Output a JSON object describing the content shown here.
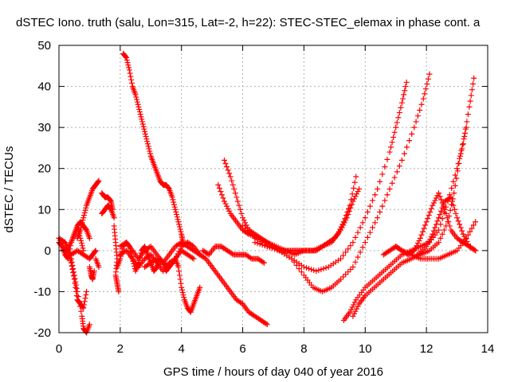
{
  "chart_data": {
    "type": "scatter",
    "title": "dSTEC Iono. truth (salu, Lon=315, Lat=-2, h=22): STEC-STEC_elemax in phase cont. a",
    "xlabel": "GPS time / hours of day 040 of year 2016",
    "ylabel": "dSTEC  / TECUs",
    "xlim": [
      0,
      14
    ],
    "ylim": [
      -20,
      50
    ],
    "xticks": [
      0,
      2,
      4,
      6,
      8,
      10,
      12,
      14
    ],
    "yticks": [
      -20,
      -10,
      0,
      10,
      20,
      30,
      40,
      50
    ],
    "grid": true,
    "legend": "none",
    "marker": "plus",
    "color": "#ff0000",
    "series": [
      {
        "x": [
          0.0,
          0.2,
          0.4,
          0.5,
          0.6,
          0.75,
          0.8,
          0.9,
          1.0
        ],
        "y": [
          3,
          2,
          -2,
          -6,
          -10,
          -16,
          -19,
          -20,
          -18
        ]
      },
      {
        "x": [
          0.2,
          0.3,
          0.4,
          0.5,
          0.6,
          0.7,
          0.8,
          0.9
        ],
        "y": [
          2,
          0,
          -3,
          -7,
          -12,
          -13,
          -14,
          -10
        ]
      },
      {
        "x": [
          0.0,
          0.1,
          0.2,
          0.3,
          0.4,
          0.5,
          0.6,
          0.7,
          0.8
        ],
        "y": [
          2,
          1,
          -1,
          -2,
          2,
          4,
          6,
          3,
          0
        ]
      },
      {
        "x": [
          0.0,
          0.2,
          0.4,
          0.5,
          0.6,
          0.7,
          0.8,
          0.9,
          1.0
        ],
        "y": [
          3,
          0,
          2,
          4,
          6,
          7,
          6,
          5,
          3
        ]
      },
      {
        "x": [
          0.2,
          0.4,
          0.6,
          0.8,
          1.0,
          1.1,
          1.2
        ],
        "y": [
          0,
          -1,
          0,
          -1,
          -2,
          -1,
          0
        ]
      },
      {
        "x": [
          0.6,
          0.7,
          0.8,
          0.9,
          1.0,
          1.1,
          1.2,
          1.3
        ],
        "y": [
          3,
          5,
          8,
          11,
          13,
          15,
          16,
          17
        ]
      },
      {
        "x": [
          1.0,
          1.05,
          1.1,
          1.15
        ],
        "y": [
          -4,
          -6,
          -7,
          -5
        ]
      },
      {
        "x": [
          1.2,
          1.3
        ],
        "y": [
          -2,
          -4
        ]
      },
      {
        "x": [
          1.4,
          1.5,
          1.6,
          1.7,
          1.75
        ],
        "y": [
          14,
          13,
          13,
          12,
          10
        ]
      },
      {
        "x": [
          1.4,
          1.5,
          1.6,
          1.7,
          1.8
        ],
        "y": [
          9,
          10,
          11,
          10,
          8
        ]
      },
      {
        "x": [
          1.8,
          1.85,
          1.9,
          1.85,
          1.9,
          1.95
        ],
        "y": [
          6,
          2,
          -2,
          -6,
          -8,
          -10
        ]
      },
      {
        "x": [
          1.9,
          2.0,
          2.1,
          2.2,
          2.3,
          2.4,
          2.5,
          2.6,
          2.7,
          2.8,
          2.9,
          3.0,
          3.1,
          3.2,
          3.3,
          3.4,
          3.5,
          3.6,
          3.7,
          3.8,
          3.9,
          4.0,
          4.1,
          4.2,
          4.3,
          4.4,
          4.5,
          4.6
        ],
        "y": [
          -4,
          -2,
          1,
          2,
          1,
          -2,
          -5,
          -3,
          0,
          1,
          -1,
          -3,
          -5,
          -4,
          -2,
          -3,
          -5,
          -4,
          -3,
          -2,
          -4,
          -9,
          -12,
          -14,
          -15,
          -13,
          -11,
          -9
        ]
      },
      {
        "x": [
          2.0,
          2.2,
          2.4,
          2.6,
          2.8,
          3.0,
          3.2,
          3.4,
          3.6,
          3.8,
          4.0,
          4.2,
          4.4,
          4.6
        ],
        "y": [
          1,
          2,
          0,
          -2,
          0,
          1,
          -1,
          -3,
          -1,
          1,
          2,
          1,
          0,
          -1
        ]
      },
      {
        "x": [
          2.0,
          2.2,
          2.4,
          2.6,
          2.8,
          3.0,
          3.2,
          3.4,
          3.6,
          3.8,
          4.0,
          4.2,
          4.4
        ],
        "y": [
          -1,
          0,
          -2,
          -4,
          -2,
          -1,
          -3,
          -5,
          -3,
          -2,
          0,
          -1,
          -2
        ]
      },
      {
        "x": [
          2.1,
          2.2,
          2.3,
          2.4,
          2.5,
          2.6,
          2.7,
          2.8,
          2.9,
          3.0,
          3.1,
          3.2,
          3.3,
          3.4,
          3.5,
          3.6,
          3.7,
          3.8,
          3.9,
          4.0,
          4.05
        ],
        "y": [
          48,
          47,
          44,
          40,
          38,
          35,
          32,
          29,
          26,
          23,
          21,
          19,
          17,
          16,
          16,
          15,
          13,
          10,
          7,
          4,
          2
        ]
      },
      {
        "x": [
          2.8,
          3.0,
          3.2,
          3.4,
          3.6,
          3.8,
          4.0,
          4.2,
          4.4,
          4.6,
          4.8,
          5.0,
          5.2,
          5.4,
          5.6,
          5.8,
          6.0,
          6.2,
          6.4,
          6.6,
          6.8
        ],
        "y": [
          -4,
          -3,
          -2,
          -3,
          -4,
          -2,
          1,
          2,
          1,
          -1,
          -2,
          -4,
          -6,
          -8,
          -10,
          -12,
          -13,
          -15,
          -16,
          -17,
          -18
        ]
      },
      {
        "x": [
          4.7,
          4.9,
          5.1,
          5.3,
          5.5,
          5.7,
          5.9,
          6.1,
          6.3,
          6.5,
          6.7
        ],
        "y": [
          0,
          -1,
          1,
          1,
          0,
          -1,
          -1,
          -1,
          -2,
          -2,
          -3
        ]
      },
      {
        "x": [
          5.2,
          5.4,
          5.6,
          5.8,
          6.0,
          6.2,
          6.5,
          6.8,
          7.1,
          7.4,
          7.7,
          8.0,
          8.3,
          8.6,
          8.9,
          9.1,
          9.3,
          9.5,
          9.7
        ],
        "y": [
          16,
          12,
          9,
          7,
          5,
          4,
          3,
          2,
          1,
          0,
          -1,
          0,
          0,
          1,
          2,
          4,
          7,
          11,
          18
        ]
      },
      {
        "x": [
          5.4,
          5.6,
          5.8,
          6.0,
          6.2,
          6.4,
          6.6,
          6.8,
          7.0,
          7.2,
          7.4,
          7.6,
          7.8,
          8.0,
          8.2,
          8.4,
          8.6,
          8.8,
          9.0,
          9.2,
          9.4,
          9.6,
          9.8
        ],
        "y": [
          22,
          18,
          13,
          8,
          5,
          4,
          3,
          2,
          1,
          0,
          0,
          0,
          0,
          0,
          0,
          0,
          1,
          2,
          3,
          5,
          8,
          12,
          15
        ]
      },
      {
        "x": [
          6.0,
          6.4,
          6.8,
          7.2,
          7.6,
          8.0,
          8.4,
          8.8,
          9.2,
          9.6,
          10.0,
          10.4,
          10.8,
          11.0,
          11.2,
          11.35
        ],
        "y": [
          6,
          3,
          1,
          0,
          -2,
          -4,
          -5,
          -4,
          -2,
          2,
          8,
          15,
          24,
          30,
          36,
          41
        ]
      },
      {
        "x": [
          6.4,
          6.8,
          7.2,
          7.6,
          8.0,
          8.3,
          8.6,
          8.9,
          9.2,
          9.6,
          10.0,
          10.4,
          10.8,
          11.2,
          11.6,
          11.9,
          12.1
        ],
        "y": [
          2,
          1,
          0,
          -2,
          -6,
          -9,
          -10,
          -9,
          -7,
          -4,
          2,
          8,
          15,
          22,
          30,
          37,
          43
        ]
      },
      {
        "x": [
          9.3,
          9.5,
          9.7,
          10.0,
          10.3,
          10.6,
          10.9,
          11.2,
          11.5,
          11.8,
          12.1,
          12.4,
          12.7,
          13.0,
          13.2,
          13.4,
          13.55
        ],
        "y": [
          -17,
          -15,
          -12,
          -9,
          -7,
          -5,
          -3,
          -1,
          0,
          1,
          2,
          5,
          12,
          20,
          26,
          35,
          42
        ]
      },
      {
        "x": [
          9.6,
          9.8,
          10.0,
          10.3,
          10.6,
          10.9,
          11.2,
          11.5,
          11.8,
          12.1,
          12.4,
          12.7,
          12.9,
          13.1,
          13.3
        ],
        "y": [
          -16,
          -13,
          -11,
          -9,
          -7,
          -5,
          -3,
          -2,
          -1,
          0,
          2,
          7,
          14,
          23,
          30
        ]
      },
      {
        "x": [
          10.6,
          10.8,
          11.0,
          11.2,
          11.5,
          11.8,
          12.1,
          12.4,
          12.7,
          13.0,
          13.3,
          13.6
        ],
        "y": [
          -1,
          0,
          1,
          0,
          -1,
          -2,
          -2,
          -2,
          -1,
          0,
          3,
          7
        ]
      },
      {
        "x": [
          11.0,
          11.2,
          11.4,
          11.6,
          11.8,
          12.0,
          12.2,
          12.4,
          12.6,
          12.8,
          13.0,
          13.2,
          13.4,
          13.6
        ],
        "y": [
          1,
          0,
          -1,
          0,
          3,
          7,
          11,
          14,
          10,
          5,
          3,
          2,
          1,
          0
        ]
      },
      {
        "x": [
          11.7,
          12.0,
          12.2,
          12.4,
          12.6,
          12.8,
          13.0,
          13.2,
          13.4,
          13.6
        ],
        "y": [
          -1,
          1,
          4,
          8,
          12,
          13,
          8,
          4,
          1,
          0
        ]
      }
    ]
  }
}
